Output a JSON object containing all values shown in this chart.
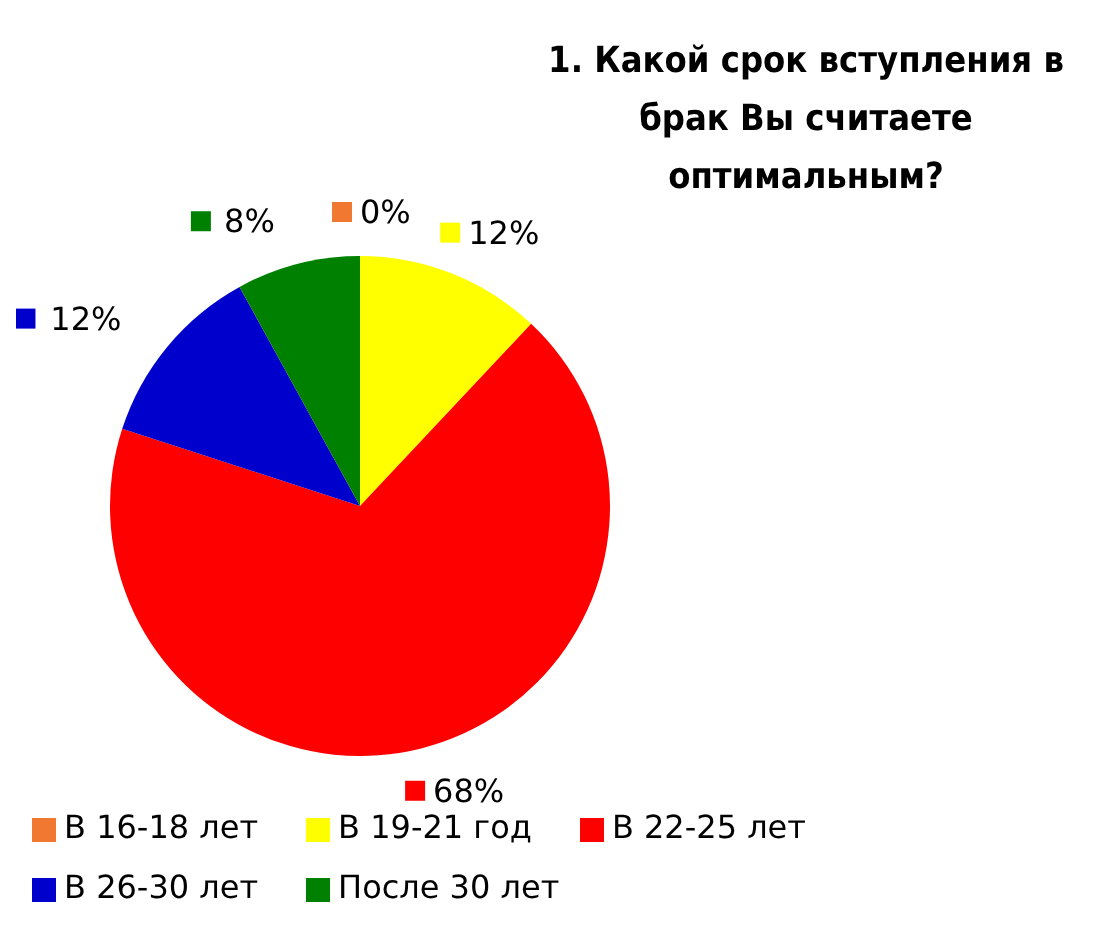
{
  "chart_data": {
    "type": "pie",
    "title": "1. Какой срок вступления в брак Вы считаете оптимальным?",
    "categories": [
      "В 16-18 лет",
      "В 19-21 год",
      "В 22-25 лет",
      "В 26-30 лет",
      "После 30 лет"
    ],
    "values": [
      0,
      12,
      68,
      12,
      8
    ],
    "colors": [
      "#f07830",
      "#ffff00",
      "#ff0000",
      "#0000cc",
      "#008000"
    ],
    "value_labels": [
      "0%",
      "12%",
      "68%",
      "12%",
      "8%"
    ],
    "legend": "bottom"
  }
}
